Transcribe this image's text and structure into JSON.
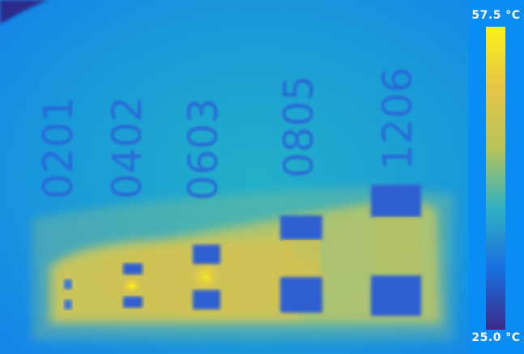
{
  "colorbar": {
    "max_label": "57.5 °C",
    "min_label": "25.0 °C",
    "colors": [
      "#fbf21a",
      "#e6c546",
      "#b8c45a",
      "#2fb0c2",
      "#1a6fe0",
      "#3a2a8a"
    ]
  },
  "packages": [
    {
      "label": "0201"
    },
    {
      "label": "0402"
    },
    {
      "label": "0603"
    },
    {
      "label": "0805"
    },
    {
      "label": "1206"
    }
  ]
}
